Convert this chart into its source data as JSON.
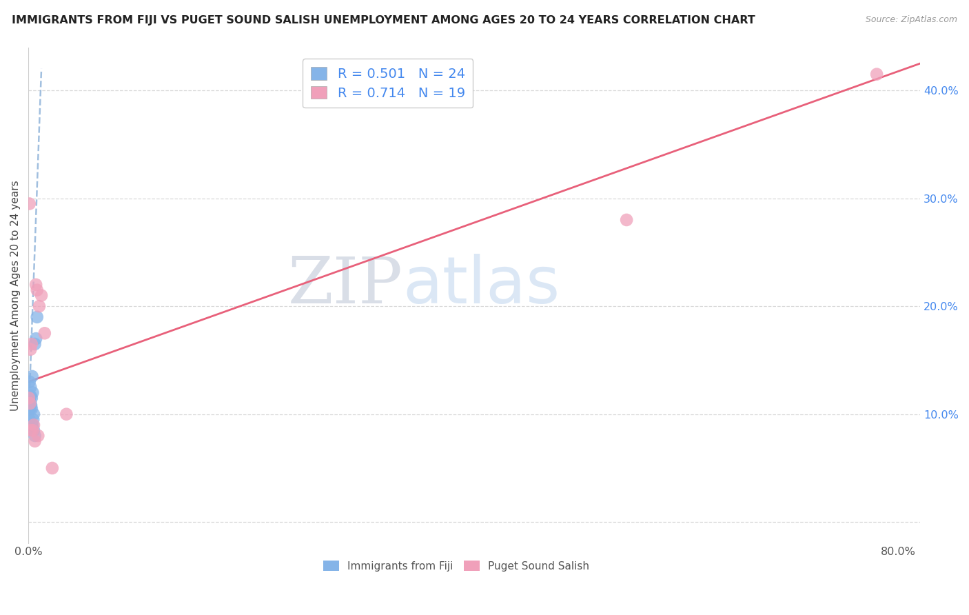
{
  "title": "IMMIGRANTS FROM FIJI VS PUGET SOUND SALISH UNEMPLOYMENT AMONG AGES 20 TO 24 YEARS CORRELATION CHART",
  "source": "Source: ZipAtlas.com",
  "ylabel": "Unemployment Among Ages 20 to 24 years",
  "watermark_zip": "ZIP",
  "watermark_atlas": "atlas",
  "xlim": [
    0.0,
    0.82
  ],
  "ylim": [
    -0.02,
    0.44
  ],
  "x_ticks": [
    0.0,
    0.1,
    0.2,
    0.3,
    0.4,
    0.5,
    0.6,
    0.7,
    0.8
  ],
  "x_tick_labels": [
    "0.0%",
    "",
    "",
    "",
    "",
    "",
    "",
    "",
    "80.0%"
  ],
  "y_ticks": [
    0.0,
    0.1,
    0.2,
    0.3,
    0.4
  ],
  "y_tick_labels": [
    "",
    "10.0%",
    "20.0%",
    "30.0%",
    "40.0%"
  ],
  "fiji_color": "#85b4e8",
  "salish_color": "#f0a0ba",
  "fiji_line_color": "#8ab0d8",
  "salish_line_color": "#e8607a",
  "fiji_R": 0.501,
  "fiji_N": 24,
  "salish_R": 0.714,
  "salish_N": 19,
  "legend_label_fiji": "Immigrants from Fiji",
  "legend_label_salish": "Puget Sound Salish",
  "fiji_x": [
    0.0005,
    0.0007,
    0.001,
    0.001,
    0.001,
    0.0015,
    0.0015,
    0.002,
    0.002,
    0.002,
    0.0025,
    0.003,
    0.003,
    0.003,
    0.0035,
    0.004,
    0.004,
    0.0045,
    0.005,
    0.005,
    0.006,
    0.006,
    0.007,
    0.008
  ],
  "fiji_y": [
    0.11,
    0.115,
    0.095,
    0.105,
    0.13,
    0.105,
    0.115,
    0.11,
    0.117,
    0.125,
    0.108,
    0.09,
    0.105,
    0.115,
    0.135,
    0.09,
    0.12,
    0.095,
    0.085,
    0.1,
    0.08,
    0.165,
    0.17,
    0.19
  ],
  "salish_x": [
    0.0005,
    0.001,
    0.0015,
    0.002,
    0.002,
    0.003,
    0.004,
    0.005,
    0.006,
    0.007,
    0.008,
    0.009,
    0.01,
    0.012,
    0.015,
    0.022,
    0.035,
    0.55,
    0.78
  ],
  "salish_y": [
    0.115,
    0.295,
    0.11,
    0.085,
    0.16,
    0.165,
    0.085,
    0.09,
    0.075,
    0.22,
    0.215,
    0.08,
    0.2,
    0.21,
    0.175,
    0.05,
    0.1,
    0.28,
    0.415
  ],
  "fiji_line_x0": 0.0,
  "fiji_line_y0": 0.09,
  "fiji_line_x1": 0.012,
  "fiji_line_y1": 0.42,
  "salish_line_x0": 0.0,
  "salish_line_y0": 0.13,
  "salish_line_x1": 0.82,
  "salish_line_y1": 0.425,
  "background_color": "#ffffff",
  "grid_color": "#d8d8d8",
  "title_fontsize": 11.5,
  "tick_label_color_y": "#4488ee",
  "tick_label_color_x": "#555555"
}
